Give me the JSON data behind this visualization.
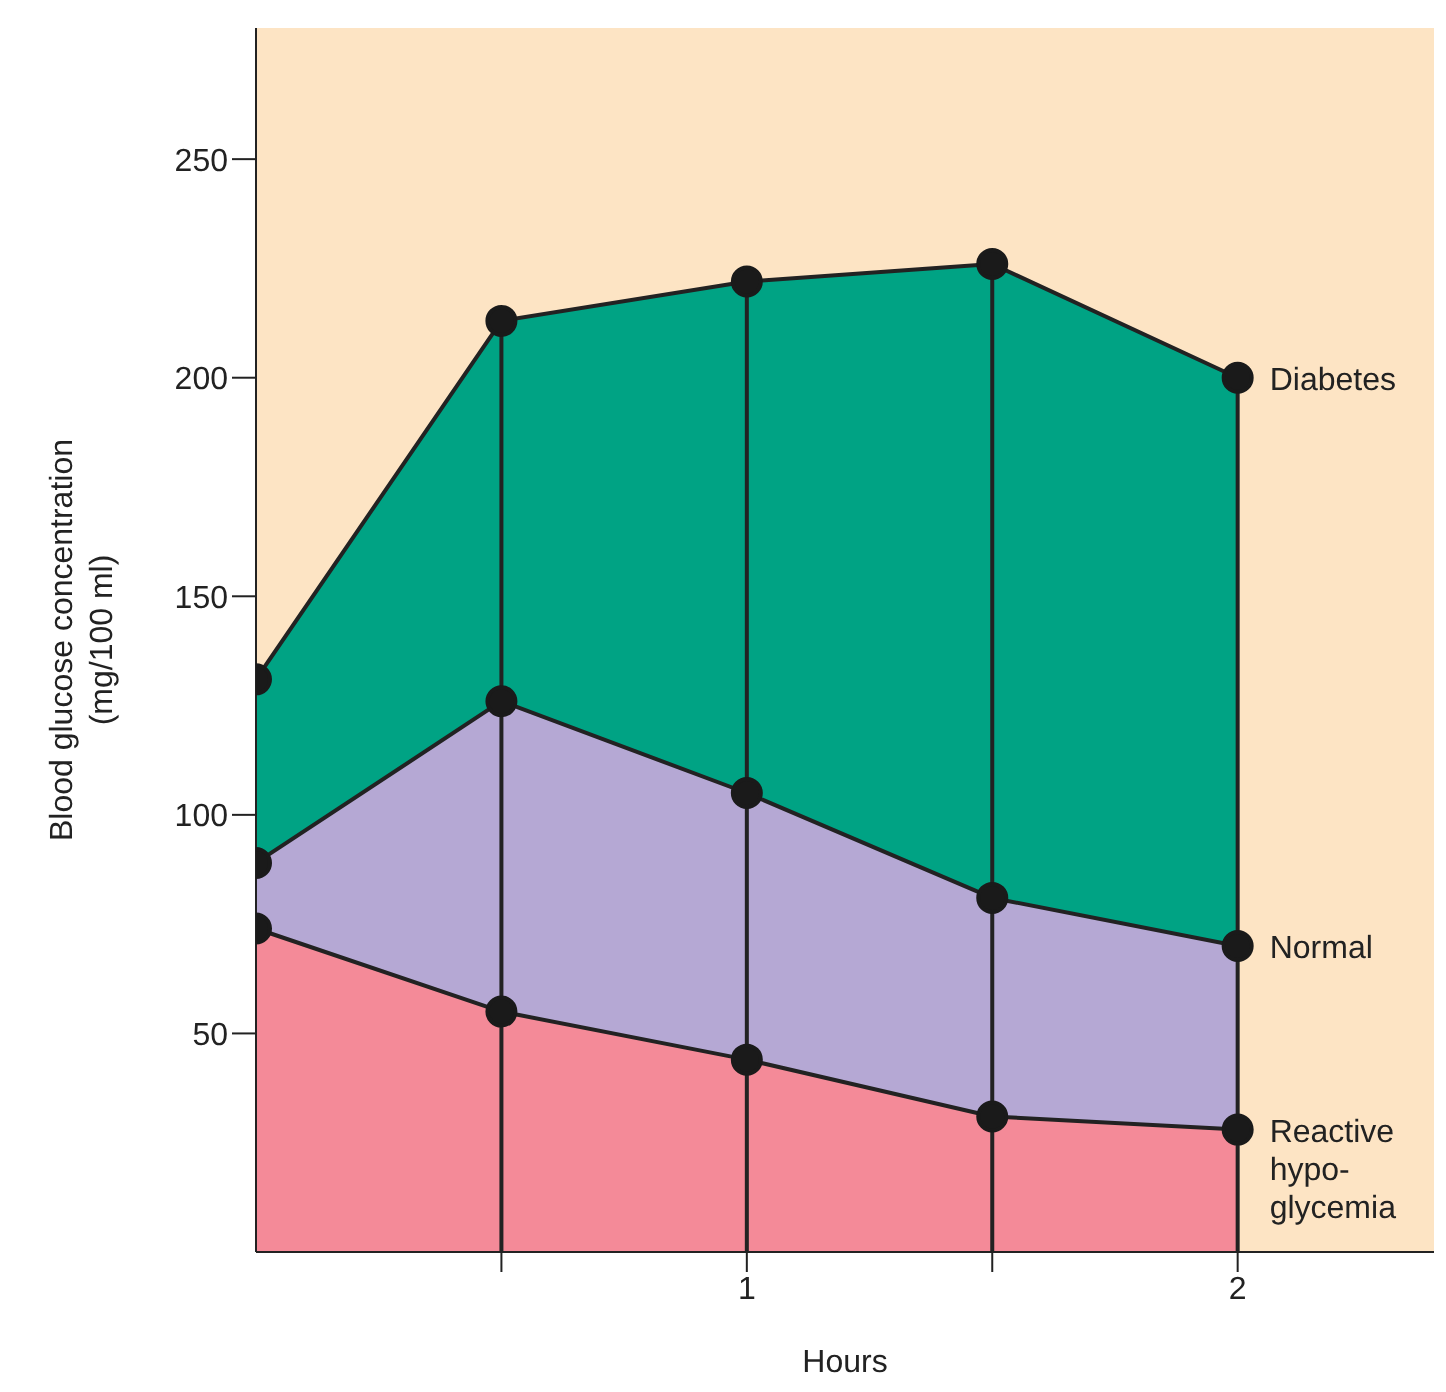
{
  "chart_data": {
    "type": "area",
    "xlabel": "Hours",
    "ylabel": "Blood glucose concentration (mg/100 ml)",
    "x": [
      0,
      0.5,
      1,
      1.5,
      2
    ],
    "series": [
      {
        "name": "Diabetes",
        "color": "#00a384",
        "values": [
          131,
          213,
          222,
          226,
          200
        ]
      },
      {
        "name": "Normal",
        "color": "#b5a8d4",
        "values": [
          89,
          126,
          105,
          81,
          70
        ]
      },
      {
        "name": "Reactive hypo-glycemia",
        "color": "#f48a98",
        "values": [
          74,
          55,
          44,
          31,
          28
        ]
      }
    ],
    "xlim": [
      0,
      2.4
    ],
    "xticks": [
      {
        "value": 0.5,
        "label": null
      },
      1,
      {
        "value": 1.5,
        "label": null
      },
      2
    ],
    "ylim": [
      0,
      280
    ],
    "yticks": [
      50,
      100,
      150,
      200,
      250
    ],
    "grid": "x",
    "marker": "circle",
    "legend": false
  }
}
